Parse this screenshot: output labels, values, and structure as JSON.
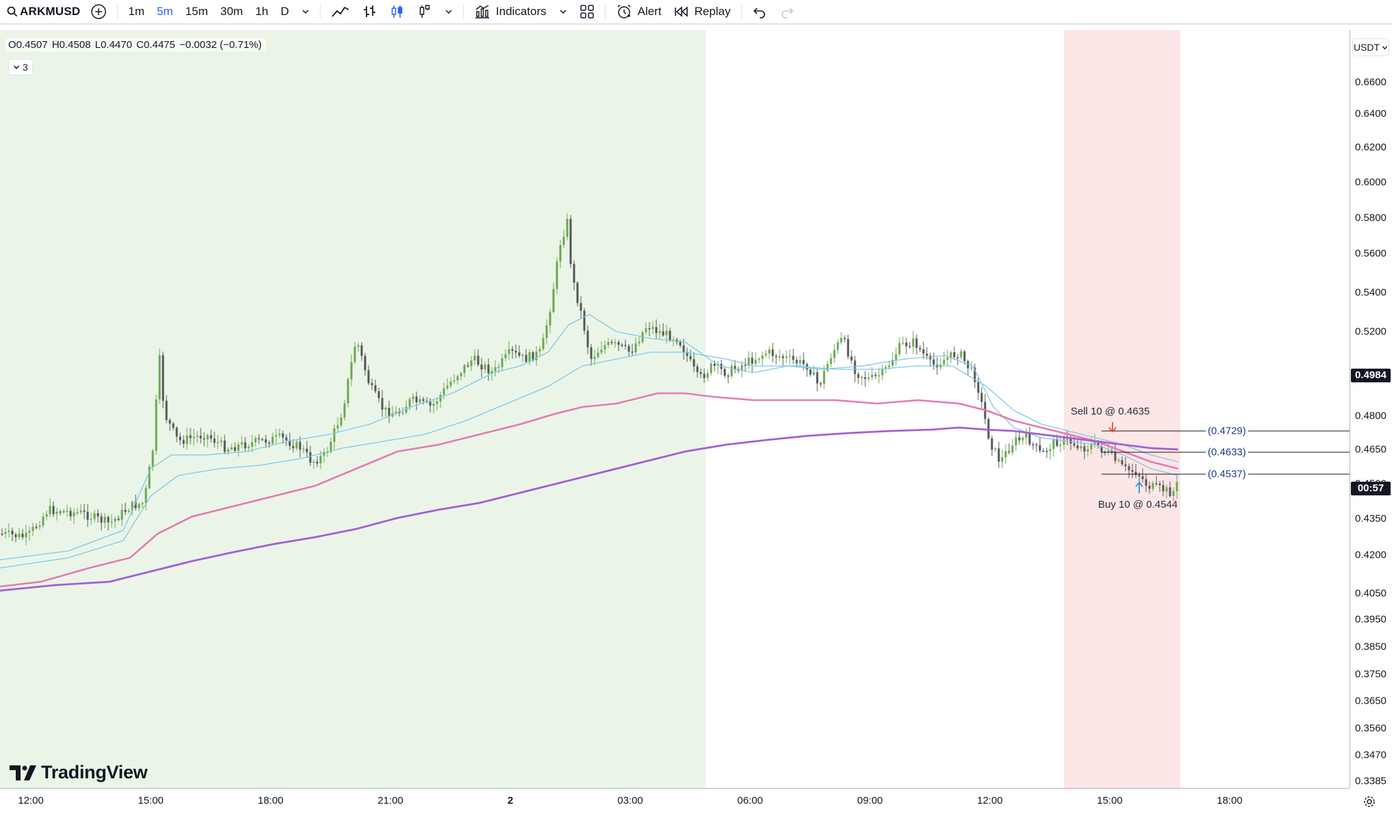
{
  "toolbar": {
    "symbol": "ARKMUSD",
    "intervals": [
      {
        "label": "1m",
        "active": false
      },
      {
        "label": "5m",
        "active": true
      },
      {
        "label": "15m",
        "active": false
      },
      {
        "label": "30m",
        "active": false
      },
      {
        "label": "1h",
        "active": false
      },
      {
        "label": "D",
        "active": false
      }
    ],
    "indicators_label": "Indicators",
    "alert_label": "Alert",
    "replay_label": "Replay",
    "accent_color": "#2962ff"
  },
  "legend": {
    "open": "O0.4507",
    "high": "H0.4508",
    "low": "L0.4470",
    "close": "C0.4475",
    "change": "−0.0032 (−0.71%)",
    "indicator_count": "3"
  },
  "price_scale": {
    "currency": "USDT",
    "ticks": [
      "0.6600",
      "0.6400",
      "0.6200",
      "0.6000",
      "0.5800",
      "0.5600",
      "0.5400",
      "0.5200",
      "0.4800",
      "0.4650",
      "0.4500",
      "0.4350",
      "0.4200",
      "0.4050",
      "0.3950",
      "0.3850",
      "0.3750",
      "0.3650",
      "0.3560",
      "0.3470",
      "0.3385"
    ],
    "last_price_tag": "0.4984",
    "countdown_tag": "00:57"
  },
  "time_axis": {
    "ticks": [
      {
        "label": "12:00",
        "bold": false
      },
      {
        "label": "15:00",
        "bold": false
      },
      {
        "label": "18:00",
        "bold": false
      },
      {
        "label": "21:00",
        "bold": false
      },
      {
        "label": "2",
        "bold": true
      },
      {
        "label": "03:00",
        "bold": false
      },
      {
        "label": "06:00",
        "bold": false
      },
      {
        "label": "09:00",
        "bold": false
      },
      {
        "label": "12:00",
        "bold": false
      },
      {
        "label": "15:00",
        "bold": false
      },
      {
        "label": "18:00",
        "bold": false
      }
    ]
  },
  "orders": {
    "sell_label": "Sell 10 @ 0.4635",
    "buy_label": "Buy 10 @ 0.4544",
    "levels": [
      "(0.4729)",
      "(0.4633)",
      "(0.4537)"
    ]
  },
  "branding": {
    "logo_text": "TradingView"
  },
  "colors": {
    "up_candle": "#6aa84f",
    "down_candle": "#555555",
    "session_green": "#eaf5e8",
    "session_red": "#fde6e6",
    "ma_fast": "#7ec8e8",
    "ma_mid": "#e57ab2",
    "ma_slow": "#a55ed6"
  }
}
